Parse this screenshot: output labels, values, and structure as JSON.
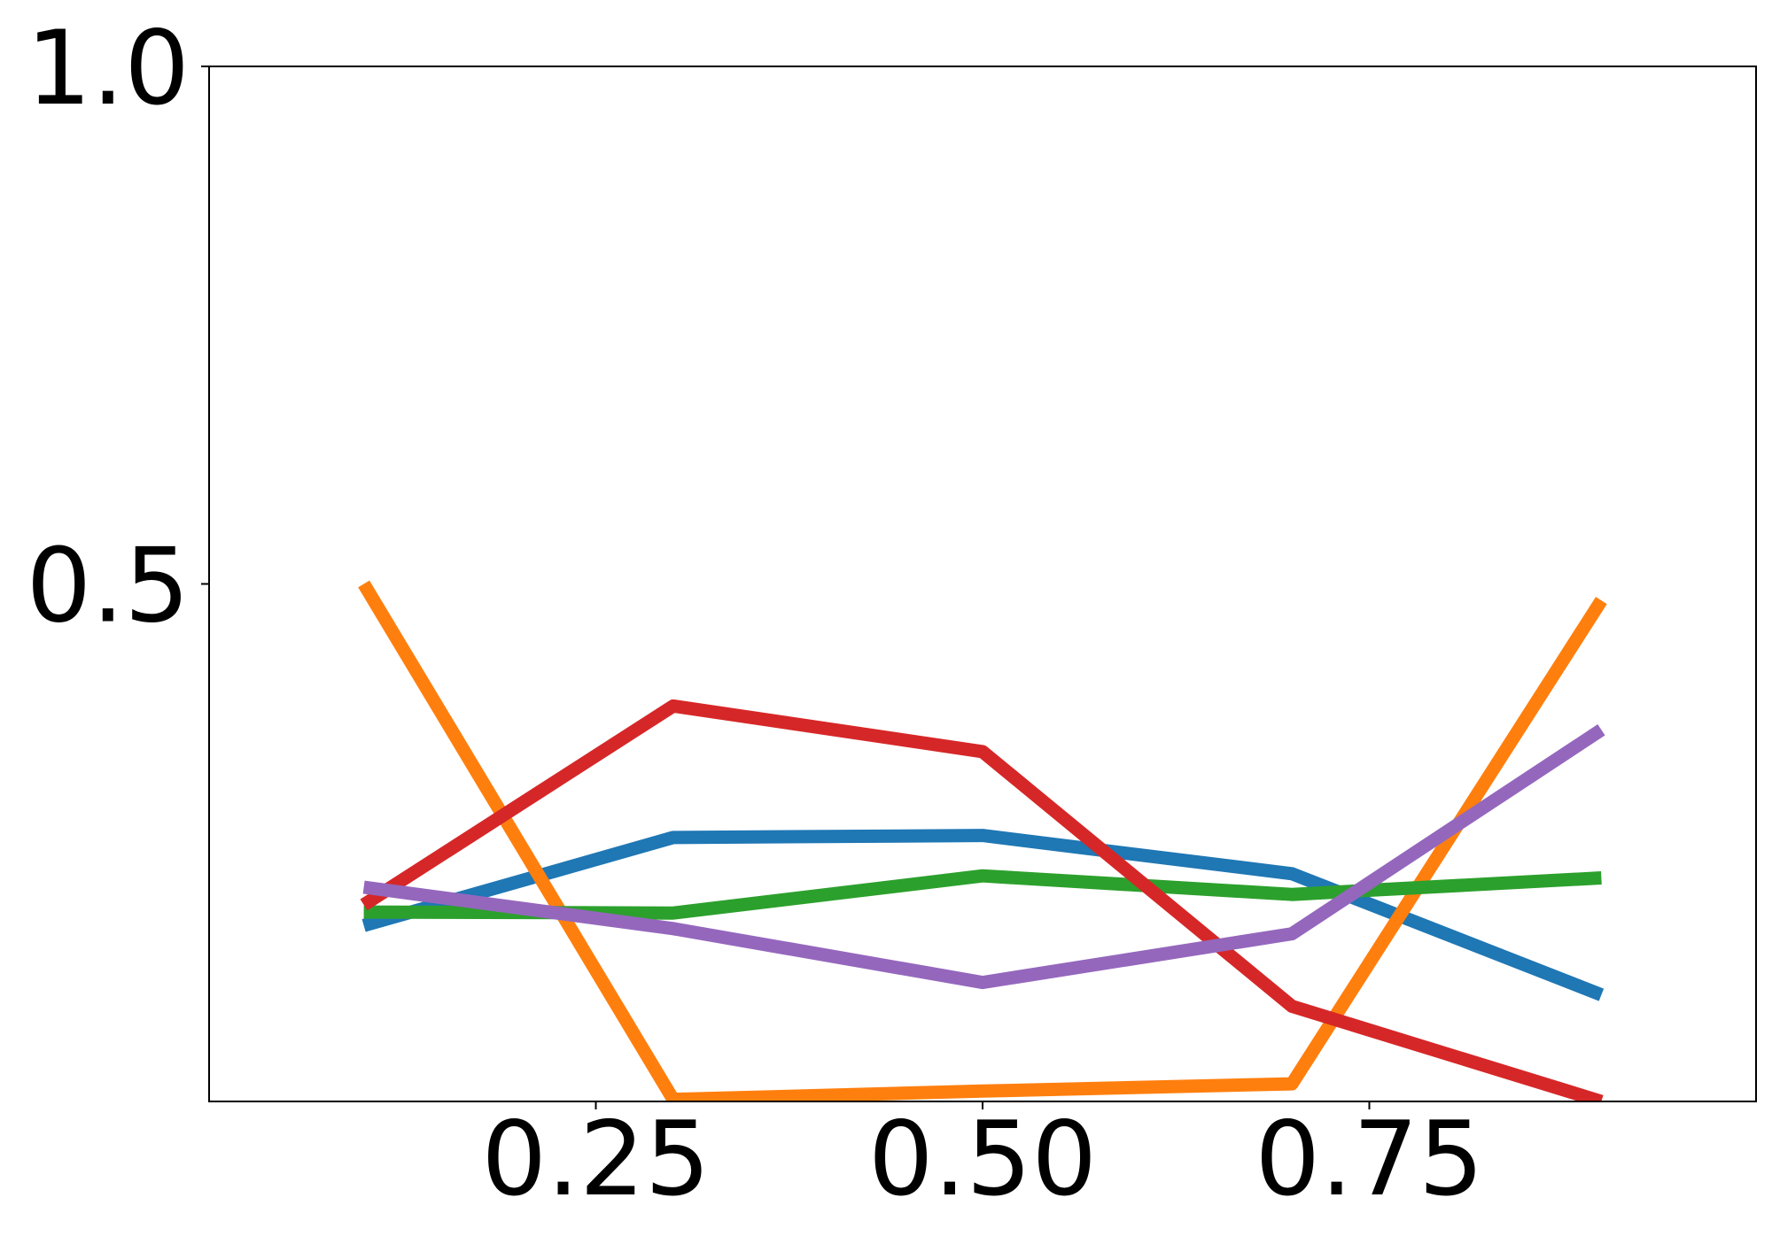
{
  "chart_data": {
    "type": "line",
    "title": "",
    "xlabel": "",
    "ylabel": "",
    "xlim": [
      0.0,
      1.0
    ],
    "ylim": [
      0.0,
      1.0
    ],
    "x_ticks": [
      {
        "value": 0.25,
        "label": "0.25"
      },
      {
        "value": 0.5,
        "label": "0.50"
      },
      {
        "value": 0.75,
        "label": "0.75"
      }
    ],
    "y_ticks": [
      {
        "value": 0.5,
        "label": "0.5"
      },
      {
        "value": 1.0,
        "label": "1.0"
      }
    ],
    "grid": false,
    "legend": "none",
    "x": [
      0.1,
      0.3,
      0.5,
      0.7,
      0.9
    ],
    "series": [
      {
        "color": "#1f77b4",
        "values": [
          0.17,
          0.255,
          0.257,
          0.22,
          0.103
        ]
      },
      {
        "color": "#ff7f0e",
        "values": [
          0.5,
          0.002,
          0.01,
          0.017,
          0.484
        ]
      },
      {
        "color": "#2ca02c",
        "values": [
          0.183,
          0.182,
          0.218,
          0.2,
          0.216
        ]
      },
      {
        "color": "#d62728",
        "values": [
          0.19,
          0.382,
          0.338,
          0.092,
          0.0
        ]
      },
      {
        "color": "#9467bd",
        "values": [
          0.207,
          0.167,
          0.115,
          0.162,
          0.359
        ]
      }
    ]
  }
}
